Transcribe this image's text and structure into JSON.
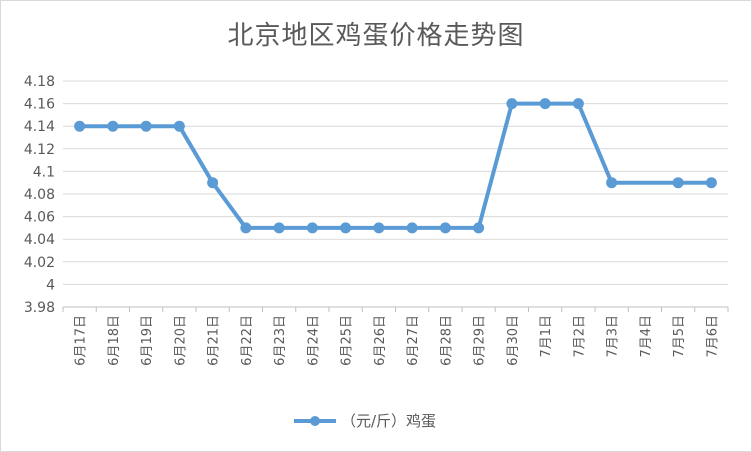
{
  "chart_data": {
    "type": "line",
    "title": "北京地区鸡蛋价格走势图",
    "categories": [
      "6月17日",
      "6月18日",
      "6月19日",
      "6月20日",
      "6月21日",
      "6月22日",
      "6月23日",
      "6月24日",
      "6月25日",
      "6月26日",
      "6月27日",
      "6月28日",
      "6月29日",
      "6月30日",
      "7月1日",
      "7月2日",
      "7月3日",
      "7月4日",
      "7月5日",
      "7月6日"
    ],
    "series": [
      {
        "name": "（元/斤）鸡蛋",
        "color": "#5b9bd5",
        "values": [
          4.14,
          4.14,
          4.14,
          4.14,
          4.09,
          4.05,
          4.05,
          4.05,
          4.05,
          4.05,
          4.05,
          4.05,
          4.05,
          4.16,
          4.16,
          4.16,
          4.09,
          null,
          4.09,
          4.09
        ]
      }
    ],
    "ylim": [
      3.98,
      4.18
    ],
    "yticks": [
      "3.98",
      "4",
      "4.02",
      "4.04",
      "4.06",
      "4.08",
      "4.1",
      "4.12",
      "4.14",
      "4.16",
      "4.18"
    ],
    "grid": true,
    "legend": "bottom"
  }
}
